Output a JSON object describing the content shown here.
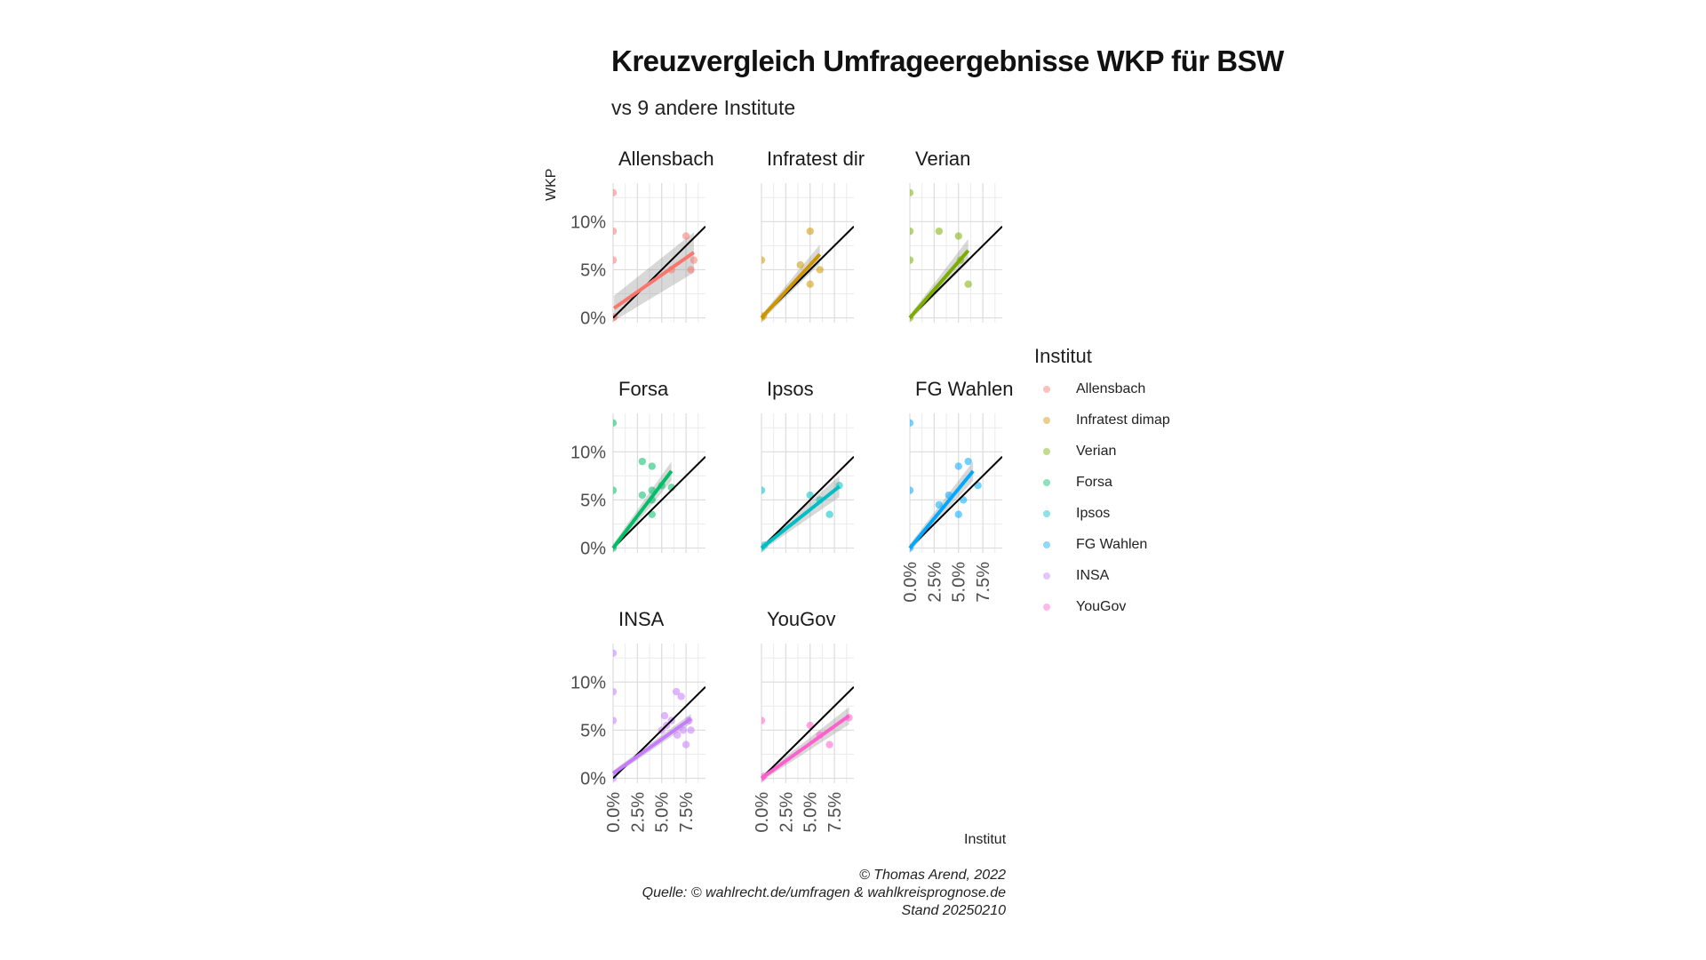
{
  "title": "Kreuzvergleich Umfrageergebnisse WKP für BSW",
  "subtitle": "vs 9 andere Institute",
  "ylabel": "WKP",
  "xlabel": "Institut",
  "legend_title": "Institut",
  "caption": {
    "line1": "© Thomas Arend, 2022",
    "line2": "Quelle: © wahlrecht.de/umfragen & wahlkreisprognose.de",
    "line3": "Stand 20250210"
  },
  "chart_data": {
    "type": "scatter",
    "x_ticks": [
      "0.0%",
      "2.5%",
      "5.0%",
      "7.5%"
    ],
    "y_ticks": [
      "0%",
      "5%",
      "10%"
    ],
    "xlim": [
      0,
      9.5
    ],
    "ylim": [
      -0.5,
      14
    ],
    "panels": [
      {
        "name": "Allensbach",
        "label": "Allensbach",
        "color": "#F8766D",
        "points": [
          [
            0,
            13
          ],
          [
            0,
            9
          ],
          [
            0,
            6
          ],
          [
            0,
            0
          ],
          [
            0.1,
            0.1
          ],
          [
            6,
            5
          ],
          [
            7.5,
            8.5
          ],
          [
            8,
            5
          ],
          [
            8.3,
            6
          ]
        ],
        "fit": [
          0.1,
          1.0,
          8.3,
          6.8
        ],
        "band": [
          1.3,
          2.1
        ]
      },
      {
        "name": "Infratest dimap",
        "label": "Infratest dir",
        "color": "#CD9600",
        "points": [
          [
            0,
            6
          ],
          [
            0,
            0
          ],
          [
            0.2,
            0.2
          ],
          [
            4,
            5.5
          ],
          [
            5,
            9
          ],
          [
            5,
            3.5
          ],
          [
            6,
            5
          ]
        ],
        "fit": [
          0,
          0,
          6,
          6.6
        ],
        "band": [
          0.3,
          1.0
        ]
      },
      {
        "name": "Verian",
        "label": "Verian",
        "color": "#7CAE00",
        "points": [
          [
            0,
            13
          ],
          [
            0,
            9
          ],
          [
            0,
            6
          ],
          [
            0,
            0
          ],
          [
            3,
            9
          ],
          [
            5,
            8.5
          ],
          [
            5.2,
            6
          ],
          [
            6,
            3.5
          ]
        ],
        "fit": [
          0,
          0,
          6,
          7
        ],
        "band": [
          0.3,
          1.2
        ]
      },
      {
        "name": "Forsa",
        "label": "Forsa",
        "color": "#00BE67",
        "points": [
          [
            0,
            13
          ],
          [
            0,
            6
          ],
          [
            0,
            0
          ],
          [
            3,
            9
          ],
          [
            3,
            5.5
          ],
          [
            4,
            8.5
          ],
          [
            4,
            6
          ],
          [
            4,
            5
          ],
          [
            4,
            3.5
          ],
          [
            5,
            6.5
          ],
          [
            6,
            6.3
          ]
        ],
        "fit": [
          0,
          0,
          6,
          8
        ],
        "band": [
          0.4,
          1.0
        ]
      },
      {
        "name": "Ipsos",
        "label": "Ipsos",
        "color": "#00BFC4",
        "points": [
          [
            0,
            6
          ],
          [
            0,
            0
          ],
          [
            0.3,
            0.3
          ],
          [
            5,
            5.5
          ],
          [
            6,
            5
          ],
          [
            7,
            3.5
          ],
          [
            8,
            6.5
          ]
        ],
        "fit": [
          0,
          0,
          8,
          6.4
        ],
        "band": [
          0.3,
          1.1
        ]
      },
      {
        "name": "FG Wahlen",
        "label": "FG Wahlen",
        "color": "#00A9FF",
        "points": [
          [
            0,
            13
          ],
          [
            0,
            6
          ],
          [
            0,
            0
          ],
          [
            3,
            4.5
          ],
          [
            4,
            5.5
          ],
          [
            5,
            8.5
          ],
          [
            5,
            3.5
          ],
          [
            5.5,
            5
          ],
          [
            6,
            9
          ],
          [
            7,
            6.5
          ]
        ],
        "fit": [
          0,
          0,
          6.5,
          8
        ],
        "band": [
          0.4,
          1.0
        ]
      },
      {
        "name": "INSA",
        "label": "INSA",
        "color": "#C77CFF",
        "points": [
          [
            0,
            13
          ],
          [
            0,
            9
          ],
          [
            0,
            6
          ],
          [
            0,
            0
          ],
          [
            5,
            5
          ],
          [
            5.3,
            6.5
          ],
          [
            5.5,
            5.5
          ],
          [
            6,
            6
          ],
          [
            6.5,
            9
          ],
          [
            6.6,
            4.5
          ],
          [
            7,
            8.5
          ],
          [
            7.2,
            5
          ],
          [
            7.5,
            3.5
          ],
          [
            7.8,
            6
          ],
          [
            8,
            5
          ]
        ],
        "fit": [
          0,
          0.5,
          8,
          6.2
        ],
        "band": [
          0.3,
          0.5
        ]
      },
      {
        "name": "YouGov",
        "label": "YouGov",
        "color": "#FF61CC",
        "points": [
          [
            0,
            6
          ],
          [
            0,
            0
          ],
          [
            0.2,
            0.2
          ],
          [
            5,
            5.5
          ],
          [
            6,
            4.5
          ],
          [
            7,
            3.5
          ],
          [
            9,
            6.3
          ]
        ],
        "fit": [
          0,
          0,
          9,
          6.5
        ],
        "band": [
          0.3,
          0.9
        ]
      }
    ]
  }
}
